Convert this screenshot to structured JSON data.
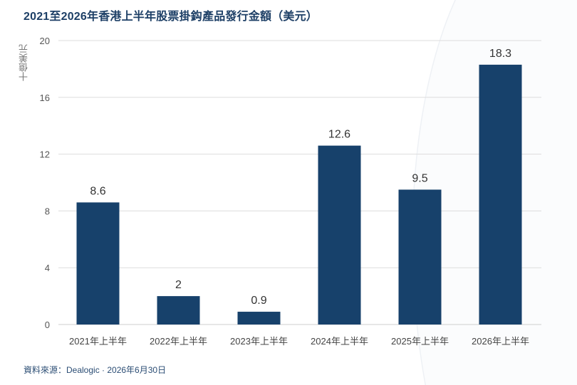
{
  "title": "2021至2026年香港上半年股票掛鈎產品發行金額（美元）",
  "source": "資料來源：Dealogic · 2026年6月30日",
  "colors": {
    "bar": "#17416b",
    "title": "#1d3f66",
    "grid": "#dddddd",
    "text": "#444444"
  },
  "chart_data": {
    "type": "bar",
    "title": "2021至2026年香港上半年股票掛鈎產品發行金額（美元）",
    "xlabel": "",
    "ylabel": "十億美元",
    "categories": [
      "2021年上半年",
      "2022年上半年",
      "2023年上半年",
      "2024年上半年",
      "2025年上半年",
      "2026年上半年"
    ],
    "values": [
      8.6,
      2,
      0.9,
      12.6,
      9.5,
      18.3
    ],
    "value_labels": [
      "8.6",
      "2",
      "0.9",
      "12.6",
      "9.5",
      "18.3"
    ],
    "yticks": [
      0,
      4,
      8,
      12,
      16,
      20
    ],
    "ylim": [
      0,
      20
    ],
    "grid": true,
    "legend": "none"
  }
}
